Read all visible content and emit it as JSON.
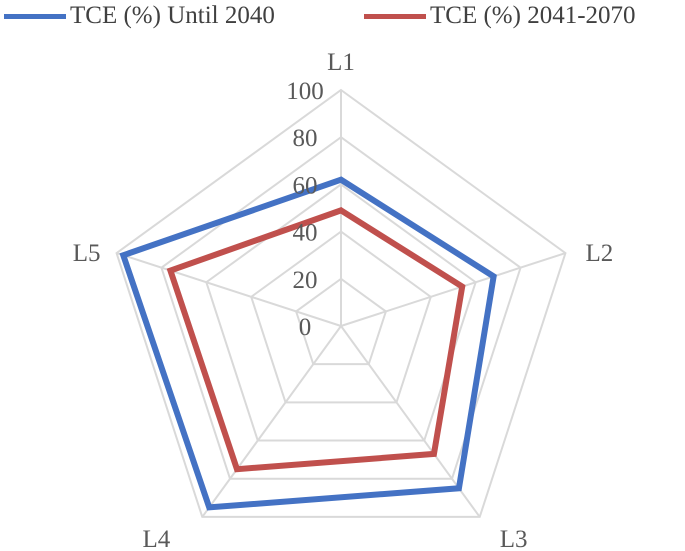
{
  "chart_data": {
    "type": "radar",
    "categories": [
      "L1",
      "L2",
      "L3",
      "L4",
      "L5"
    ],
    "r_ticks": [
      0,
      20,
      40,
      60,
      80,
      100
    ],
    "rlim": [
      0,
      100
    ],
    "grid": true,
    "legend_position": "top",
    "series": [
      {
        "name": "TCE (%) Until 2040",
        "color": "#4472c4",
        "values": [
          62,
          68,
          85,
          95,
          97
        ]
      },
      {
        "name": "TCE (%) 2041-2070",
        "color": "#c0504d",
        "values": [
          49,
          54,
          67,
          75,
          76
        ]
      }
    ]
  }
}
